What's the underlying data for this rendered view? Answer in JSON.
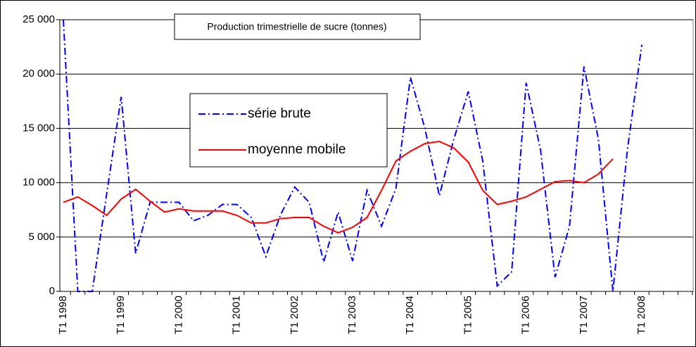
{
  "chart_data": {
    "type": "line",
    "title": "Production trimestrielle de sucre (tonnes)",
    "categories": [
      "T1 1998",
      null,
      null,
      null,
      "T1 1999",
      null,
      null,
      null,
      "T1 2000",
      null,
      null,
      null,
      "T1 2001",
      null,
      null,
      null,
      "T1 2002",
      null,
      null,
      null,
      "T1 2003",
      null,
      null,
      null,
      "T1 2004",
      null,
      null,
      null,
      "T1 2005",
      null,
      null,
      null,
      "T1 2006",
      null,
      null,
      null,
      "T1 2007",
      null,
      null,
      null,
      "T1 2008",
      null,
      null,
      null
    ],
    "series": [
      {
        "name": "série brute",
        "color": "#0000ff",
        "dash": "dashdot",
        "values": [
          25000,
          0,
          0,
          9000,
          17900,
          3500,
          8200,
          8200,
          8200,
          6500,
          7000,
          8000,
          8000,
          6800,
          3200,
          7000,
          9600,
          8200,
          2700,
          7300,
          2800,
          9300,
          6000,
          9500,
          19700,
          15000,
          8800,
          14000,
          18400,
          12000,
          500,
          1800,
          19200,
          13000,
          1300,
          6000,
          20700,
          14000,
          0,
          13000,
          22700,
          null,
          null,
          null
        ]
      },
      {
        "name": "moyenne mobile",
        "color": "#ff0000",
        "dash": "solid",
        "values": [
          8200,
          8700,
          7900,
          7000,
          8500,
          9400,
          8300,
          7300,
          7600,
          7400,
          7400,
          7400,
          7000,
          6300,
          6300,
          6700,
          6800,
          6800,
          6000,
          5400,
          5900,
          6800,
          9300,
          12000,
          12900,
          13600,
          13800,
          13200,
          11900,
          9300,
          8000,
          8300,
          8700,
          9400,
          10100,
          10200,
          10000,
          10800,
          12200,
          null,
          null,
          null,
          null,
          null
        ]
      }
    ],
    "ylim": [
      0,
      25000
    ],
    "yticks": [
      {
        "value": 0,
        "label": "0"
      },
      {
        "value": 5000,
        "label": "5 000"
      },
      {
        "value": 10000,
        "label": "10 000"
      },
      {
        "value": 15000,
        "label": "15 000"
      },
      {
        "value": 20000,
        "label": "20 000"
      },
      {
        "value": 25000,
        "label": "25 000"
      }
    ],
    "grid": true
  }
}
